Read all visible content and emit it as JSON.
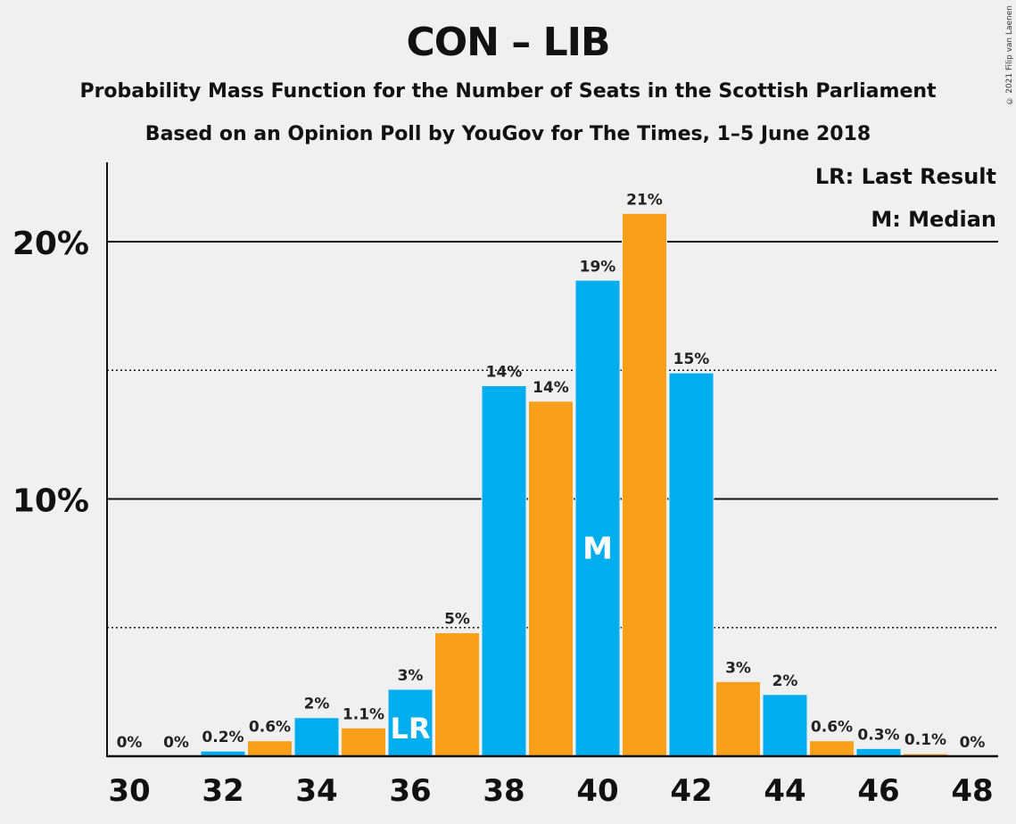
{
  "title": "CON – LIB",
  "subtitle1": "Probability Mass Function for the Number of Seats in the Scottish Parliament",
  "subtitle2": "Based on an Opinion Poll by YouGov for The Times, 1–5 June 2018",
  "copyright": "© 2021 Filip van Laenen",
  "legend": {
    "lr": "LR: Last Result",
    "m": "M: Median"
  },
  "colors": {
    "blue": "#00aeef",
    "orange": "#f9a01b",
    "background": "#f0f0f0"
  },
  "chart_data": {
    "type": "bar",
    "x": [
      30,
      31,
      32,
      33,
      34,
      35,
      36,
      37,
      38,
      39,
      40,
      41,
      42,
      43,
      44,
      45,
      46,
      47,
      48
    ],
    "values": [
      0,
      0,
      0.2,
      0.6,
      1.5,
      1.1,
      2.6,
      4.8,
      14.4,
      13.8,
      18.5,
      21.1,
      14.9,
      2.9,
      2.4,
      0.6,
      0.3,
      0.1,
      0
    ],
    "labels": [
      "0%",
      "0%",
      "0.2%",
      "0.6%",
      "2%",
      "1.1%",
      "3%",
      "5%",
      "14%",
      "14%",
      "19%",
      "21%",
      "15%",
      "3%",
      "2%",
      "0.6%",
      "0.3%",
      "0.1%",
      "0%"
    ],
    "xtick_labels": [
      "30",
      "32",
      "34",
      "36",
      "38",
      "40",
      "42",
      "44",
      "46",
      "48"
    ],
    "ytick_labels": [
      "10%",
      "20%"
    ],
    "ylim": [
      0,
      23
    ],
    "last_result": 36,
    "last_result_label": "LR",
    "median": 40,
    "median_label": "M",
    "grid": {
      "solid": [
        10,
        20
      ],
      "dotted": [
        5,
        15
      ]
    },
    "legend_position": "top-right"
  }
}
